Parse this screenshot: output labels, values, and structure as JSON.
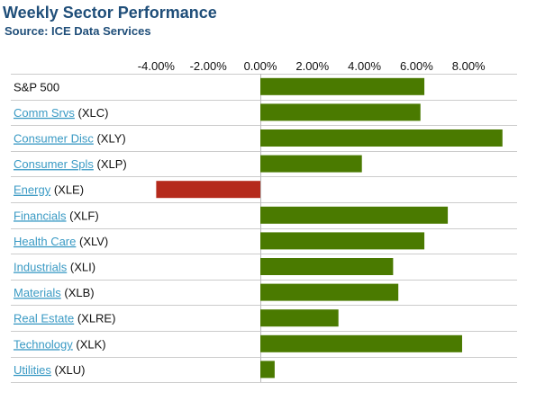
{
  "header": {
    "title": "Weekly Sector Performance",
    "source": "Source: ICE Data Services"
  },
  "colors": {
    "positive": "#4a7a00",
    "negative": "#b52a1c",
    "link": "#3a9ac4"
  },
  "chart_data": {
    "type": "bar",
    "orientation": "horizontal",
    "xlim": [
      -4.0,
      9.5
    ],
    "xticks": [
      {
        "value": -4,
        "label": "-4.00%"
      },
      {
        "value": -2,
        "label": "-2.00%"
      },
      {
        "value": 0,
        "label": "0.00%"
      },
      {
        "value": 2,
        "label": "2.00%"
      },
      {
        "value": 4,
        "label": "4.00%"
      },
      {
        "value": 6,
        "label": "6.00%"
      },
      {
        "value": 8,
        "label": "8.00%"
      }
    ],
    "categories": [
      {
        "name": "S&P 500",
        "ticker": "",
        "link": false,
        "value": 6.3
      },
      {
        "name": "Comm Srvs",
        "ticker": "(XLC)",
        "link": true,
        "value": 6.15
      },
      {
        "name": "Consumer Disc",
        "ticker": "(XLY)",
        "link": true,
        "value": 9.3
      },
      {
        "name": "Consumer Spls",
        "ticker": "(XLP)",
        "link": true,
        "value": 3.9
      },
      {
        "name": "Energy",
        "ticker": "(XLE)",
        "link": true,
        "value": -4.0
      },
      {
        "name": "Financials",
        "ticker": "(XLF)",
        "link": true,
        "value": 7.2
      },
      {
        "name": "Health Care",
        "ticker": "(XLV)",
        "link": true,
        "value": 6.3
      },
      {
        "name": "Industrials",
        "ticker": "(XLI)",
        "link": true,
        "value": 5.1
      },
      {
        "name": "Materials",
        "ticker": "(XLB)",
        "link": true,
        "value": 5.3
      },
      {
        "name": "Real Estate",
        "ticker": "(XLRE)",
        "link": true,
        "value": 3.0
      },
      {
        "name": "Technology",
        "ticker": "(XLK)",
        "link": true,
        "value": 7.75
      },
      {
        "name": "Utilities",
        "ticker": "(XLU)",
        "link": true,
        "value": 0.55
      }
    ]
  }
}
